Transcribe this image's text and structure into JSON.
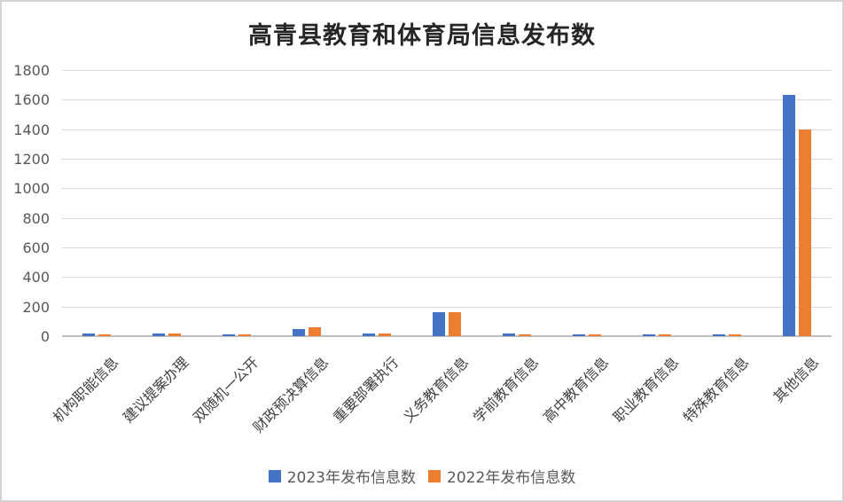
{
  "page": {
    "background": "#ffffff",
    "border_color": "#d4d4d4"
  },
  "chart_data": {
    "type": "bar",
    "title": "高青县教育和体育局信息发布数",
    "categories": [
      "机构职能信息",
      "建议提案办理",
      "双随机一公开",
      "财政预决算信息",
      "重要部署执行",
      "义务教育信息",
      "学前教育信息",
      "高中教育信息",
      "职业教育信息",
      "特殊教育信息",
      "其他信息"
    ],
    "series": [
      {
        "name": "2023年发布信息数",
        "color": "#4472C4",
        "values": [
          20,
          20,
          10,
          50,
          20,
          160,
          20,
          10,
          10,
          10,
          1630
        ]
      },
      {
        "name": "2022年发布信息数",
        "color": "#ED7D31",
        "values": [
          10,
          20,
          10,
          60,
          20,
          160,
          10,
          10,
          10,
          10,
          1400
        ]
      }
    ],
    "ylim": [
      0,
      1800
    ],
    "yticks": [
      0,
      200,
      400,
      600,
      800,
      1000,
      1200,
      1400,
      1600,
      1800
    ],
    "grid": "horizontal",
    "legend_position": "bottom",
    "gridline_color": "#d9d9d9",
    "axis_line_color": "#bfbfbf",
    "tick_label_color": "#595959",
    "category_label_color": "#404040",
    "title_color": "#262626"
  }
}
